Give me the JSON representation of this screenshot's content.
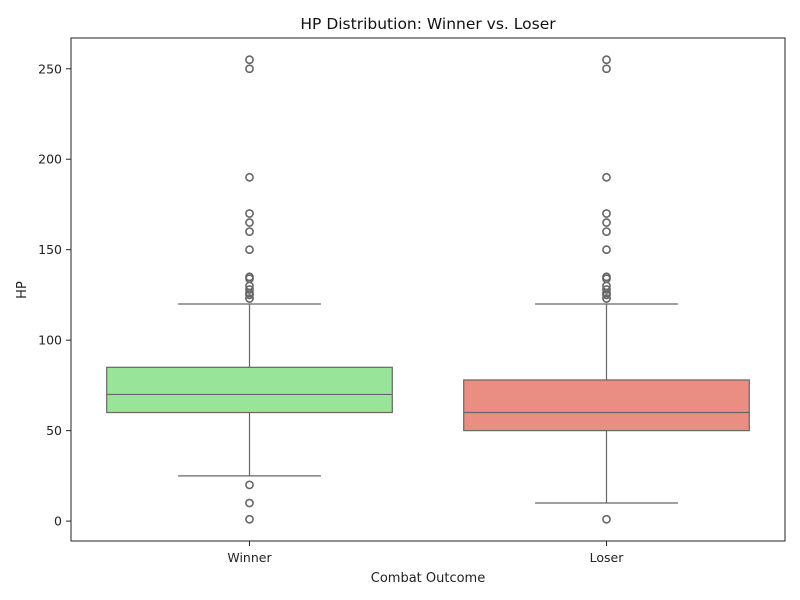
{
  "chart_data": {
    "type": "box",
    "title": "HP Distribution: Winner vs. Loser",
    "xlabel": "Combat Outcome",
    "ylabel": "HP",
    "ylim": [
      -11,
      267
    ],
    "yticks": [
      0,
      50,
      100,
      150,
      200,
      250
    ],
    "grid": false,
    "categories": [
      "Winner",
      "Loser"
    ],
    "boxes": [
      {
        "category": "Winner",
        "color": "#98e498",
        "whisker_low": 25,
        "q1": 60,
        "median": 70,
        "q3": 85,
        "whisker_high": 120,
        "outliers": [
          1,
          10,
          20,
          123,
          125,
          126,
          128,
          130,
          134,
          135,
          150,
          160,
          165,
          170,
          190,
          250,
          255
        ]
      },
      {
        "category": "Loser",
        "color": "#ea8d82",
        "whisker_low": 10,
        "q1": 50,
        "median": 60,
        "q3": 78,
        "whisker_high": 120,
        "outliers": [
          1,
          123,
          125,
          126,
          128,
          130,
          134,
          135,
          150,
          160,
          165,
          170,
          190,
          250,
          255
        ]
      }
    ]
  }
}
